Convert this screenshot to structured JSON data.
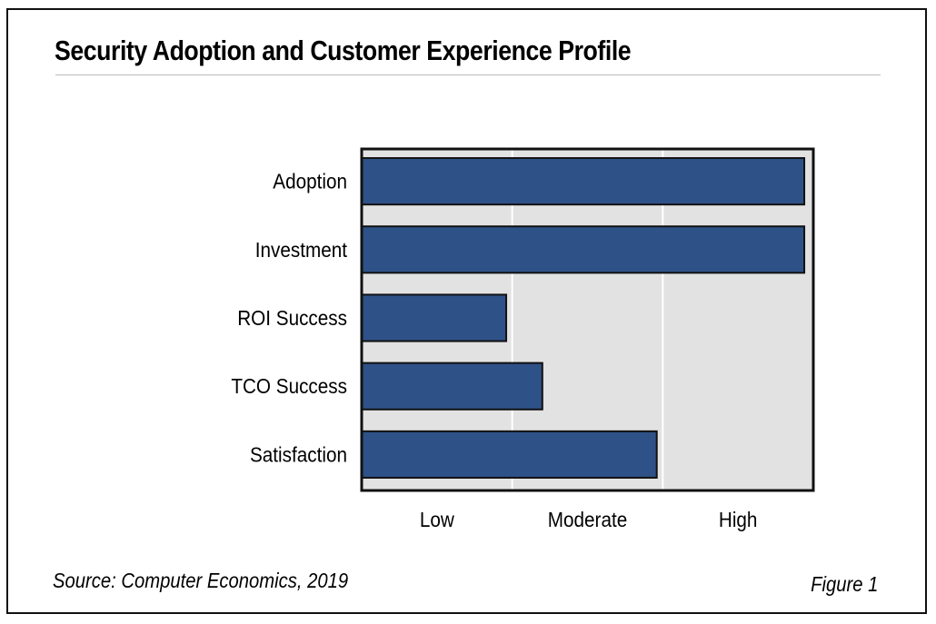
{
  "chart_data": {
    "type": "bar",
    "orientation": "horizontal",
    "title": "Security Adoption and Customer Experience Profile",
    "categories": [
      "Adoption",
      "Investment",
      "ROI Success",
      "TCO Success",
      "Satisfaction"
    ],
    "values": [
      2.94,
      2.94,
      0.96,
      1.2,
      1.96
    ],
    "xlabel": "",
    "ylabel": "",
    "xlim": [
      0,
      3
    ],
    "x_tick_labels": [
      "Low",
      "Moderate",
      "High"
    ],
    "grid": true,
    "colors": {
      "bar": "#2e5187",
      "plot_bg": "#e2e2e2",
      "grid": "#ffffff"
    }
  },
  "footer": {
    "source": "Source: Computer Economics, 2019",
    "figure": "Figure 1"
  }
}
